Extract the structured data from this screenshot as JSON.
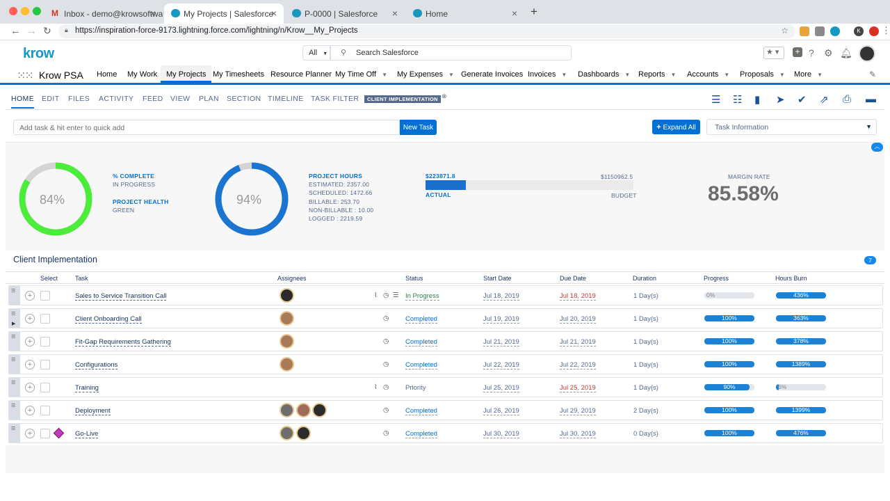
{
  "browser": {
    "tabs": [
      {
        "title": "Inbox - demo@krowsoftware.co"
      },
      {
        "title": "My Projects | Salesforce"
      },
      {
        "title": "P-0000 | Salesforce"
      },
      {
        "title": "Home"
      }
    ],
    "url": "https://inspiration-force-9173.lightning.force.com/lightning/n/Krow__My_Projects"
  },
  "header": {
    "logo": "krow",
    "search_scope": "All",
    "search_placeholder": "Search Salesforce"
  },
  "appnav": {
    "app_name": "Krow PSA",
    "items": [
      "Home",
      "My Work",
      "My Projects",
      "My Timesheets",
      "Resource Planner",
      "My Time Off",
      "My Expenses",
      "Generate Invoices",
      "Invoices",
      "Dashboards",
      "Reports",
      "Accounts",
      "Proposals",
      "More"
    ]
  },
  "toolbar": {
    "tabs": [
      "HOME",
      "EDIT",
      "FILES",
      "ACTIVITY",
      "FEED",
      "VIEW",
      "PLAN",
      "SECTION",
      "TIMELINE",
      "TASK FILTER"
    ],
    "badge": "CLIENT IMPLEMENTATION"
  },
  "quickadd": {
    "placeholder": "Add task & hit enter to quick add",
    "new_task": "New Task",
    "expand_all": "Expand All",
    "task_info": "Task Information"
  },
  "summary": {
    "complete_pct": "84%",
    "complete_value": 0.84,
    "complete_label": "% COMPLETE",
    "complete_status": "IN PROGRESS",
    "health_label": "PROJECT HEALTH",
    "health_value": "GREEN",
    "hours_pct": "94%",
    "hours_value": 0.94,
    "hours_label": "PROJECT HOURS",
    "hours_lines": [
      "ESTIMATED: 2357.00",
      "SCHEDULED: 1472.66",
      "BILLABLE: 253.70",
      "NON-BILLABLE : 10.00",
      "LOGGED : 2219.59"
    ],
    "actual_amount": "$223871.8",
    "budget_amount": "$1150962.5",
    "actual_fraction": 0.194,
    "actual_label": "ACTUAL",
    "budget_label": "BUDGET",
    "margin_label": "MARGIN RATE",
    "margin_value": "85.58%"
  },
  "table": {
    "title": "Client Implementation",
    "count": "7",
    "headers": [
      "Select",
      "Task",
      "Assignees",
      "Status",
      "Start Date",
      "Due Date",
      "Duration",
      "Progress",
      "Hours Burn"
    ],
    "rows": [
      {
        "task": "Sales to Service Transition Call",
        "status": "In Progress",
        "start": "Jul 18, 2019",
        "due": "Jul 18, 2019",
        "duration": "1 Day(s)",
        "progress": "0%",
        "progress_value": 0,
        "burn": "436%",
        "burn_value": 1
      },
      {
        "task": "Client Onboarding Call",
        "status": "Completed",
        "start": "Jul 19, 2019",
        "due": "Jul 20, 2019",
        "duration": "1 Day(s)",
        "progress": "100%",
        "progress_value": 1,
        "burn": "363%",
        "burn_value": 1
      },
      {
        "task": "Fit-Gap Requirements Gathering",
        "status": "Completed",
        "start": "Jul 21, 2019",
        "due": "Jul 21, 2019",
        "duration": "1 Day(s)",
        "progress": "100%",
        "progress_value": 1,
        "burn": "378%",
        "burn_value": 1
      },
      {
        "task": "Configurations",
        "status": "Completed",
        "start": "Jul 22, 2019",
        "due": "Jul 22, 2019",
        "duration": "1 Day(s)",
        "progress": "100%",
        "progress_value": 1,
        "burn": "1389%",
        "burn_value": 1
      },
      {
        "task": "Training",
        "status": "Priority",
        "start": "Jul 25, 2019",
        "due": "Jul 25, 2019",
        "duration": "1 Day(s)",
        "progress": "90%",
        "progress_value": 0.9,
        "burn": "6%",
        "burn_value": 0.06
      },
      {
        "task": "Deployment",
        "status": "Completed",
        "start": "Jul 26, 2019",
        "due": "Jul 29, 2019",
        "duration": "2 Day(s)",
        "progress": "100%",
        "progress_value": 1,
        "burn": "1399%",
        "burn_value": 1
      },
      {
        "task": "Go-Live",
        "status": "Completed",
        "start": "Jul 30, 2019",
        "due": "Jul 30, 2019",
        "duration": "0 Day(s)",
        "progress": "100%",
        "progress_value": 1,
        "burn": "476%",
        "burn_value": 1
      }
    ]
  },
  "colors": {
    "accent": "#0070d2",
    "ring_green": "#4bec3a",
    "ring_blue": "#1b75d0",
    "overdue": "#c23934",
    "in_progress": "#2e844a"
  }
}
